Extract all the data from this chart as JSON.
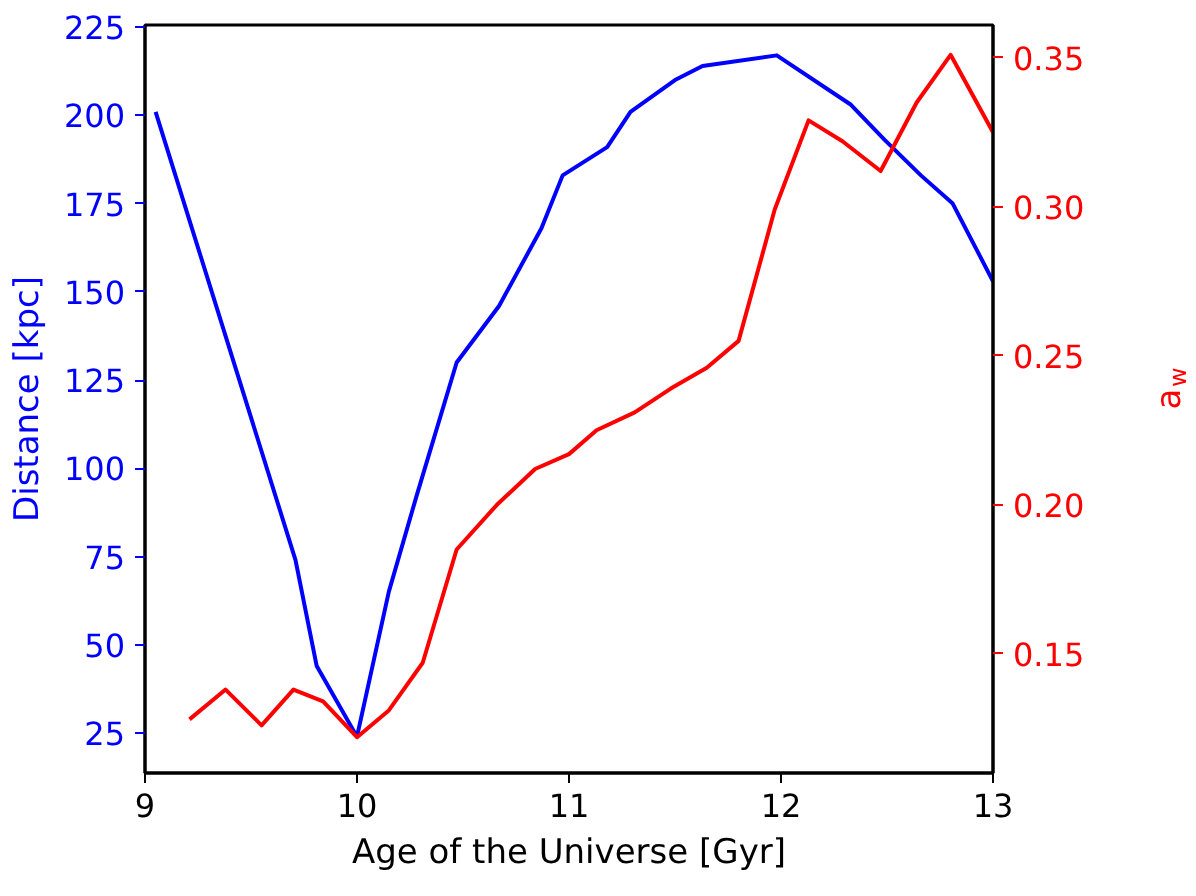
{
  "chart_data": {
    "type": "line",
    "xlabel": "Age of the Universe [Gyr]",
    "ylabel": "Distance [kpc]",
    "y2label": "a$_{w}$",
    "xlim": [
      9,
      13
    ],
    "xticks": [
      9,
      10,
      11,
      12,
      13
    ],
    "ylim": [
      13.7,
      225.6
    ],
    "yticks": [
      25,
      50,
      75,
      100,
      125,
      150,
      175,
      200,
      225
    ],
    "y2lim": [
      0.11,
      0.361
    ],
    "y2ticks": [
      {
        "value": 0.15,
        "label": "0.15"
      },
      {
        "value": 0.2,
        "label": "0.20"
      },
      {
        "value": 0.25,
        "label": "0.25"
      },
      {
        "value": 0.3,
        "label": "0.30"
      },
      {
        "value": 0.35,
        "label": "0.35"
      }
    ],
    "grid": false,
    "series": [
      {
        "color": "#0000ff",
        "x": [
          9.05,
          9.71,
          9.81,
          10.0,
          10.15,
          10.28,
          10.47,
          10.67,
          10.87,
          10.97,
          11.18,
          11.29,
          11.5,
          11.63,
          11.98,
          12.33,
          12.49,
          12.66,
          12.81,
          13.0
        ],
        "values": [
          201,
          74,
          44,
          24,
          65,
          92,
          130,
          146,
          168,
          183,
          191,
          201,
          210,
          214,
          217,
          203,
          193,
          183,
          175,
          153
        ]
      },
      {
        "color": "#ff0000",
        "axis": "y2",
        "x": [
          9.21,
          9.38,
          9.55,
          9.7,
          9.84,
          10.0,
          10.15,
          10.31,
          10.47,
          10.66,
          10.84,
          11.0,
          11.13,
          11.31,
          11.48,
          11.65,
          11.8,
          11.97,
          12.13,
          12.29,
          12.47,
          12.64,
          12.8,
          13.0
        ],
        "values": [
          0.128,
          0.138,
          0.126,
          0.138,
          0.134,
          0.122,
          0.131,
          0.147,
          0.185,
          0.2,
          0.212,
          0.217,
          0.225,
          0.231,
          0.239,
          0.246,
          0.255,
          0.299,
          0.329,
          0.322,
          0.312,
          0.335,
          0.351,
          0.325
        ]
      }
    ]
  }
}
